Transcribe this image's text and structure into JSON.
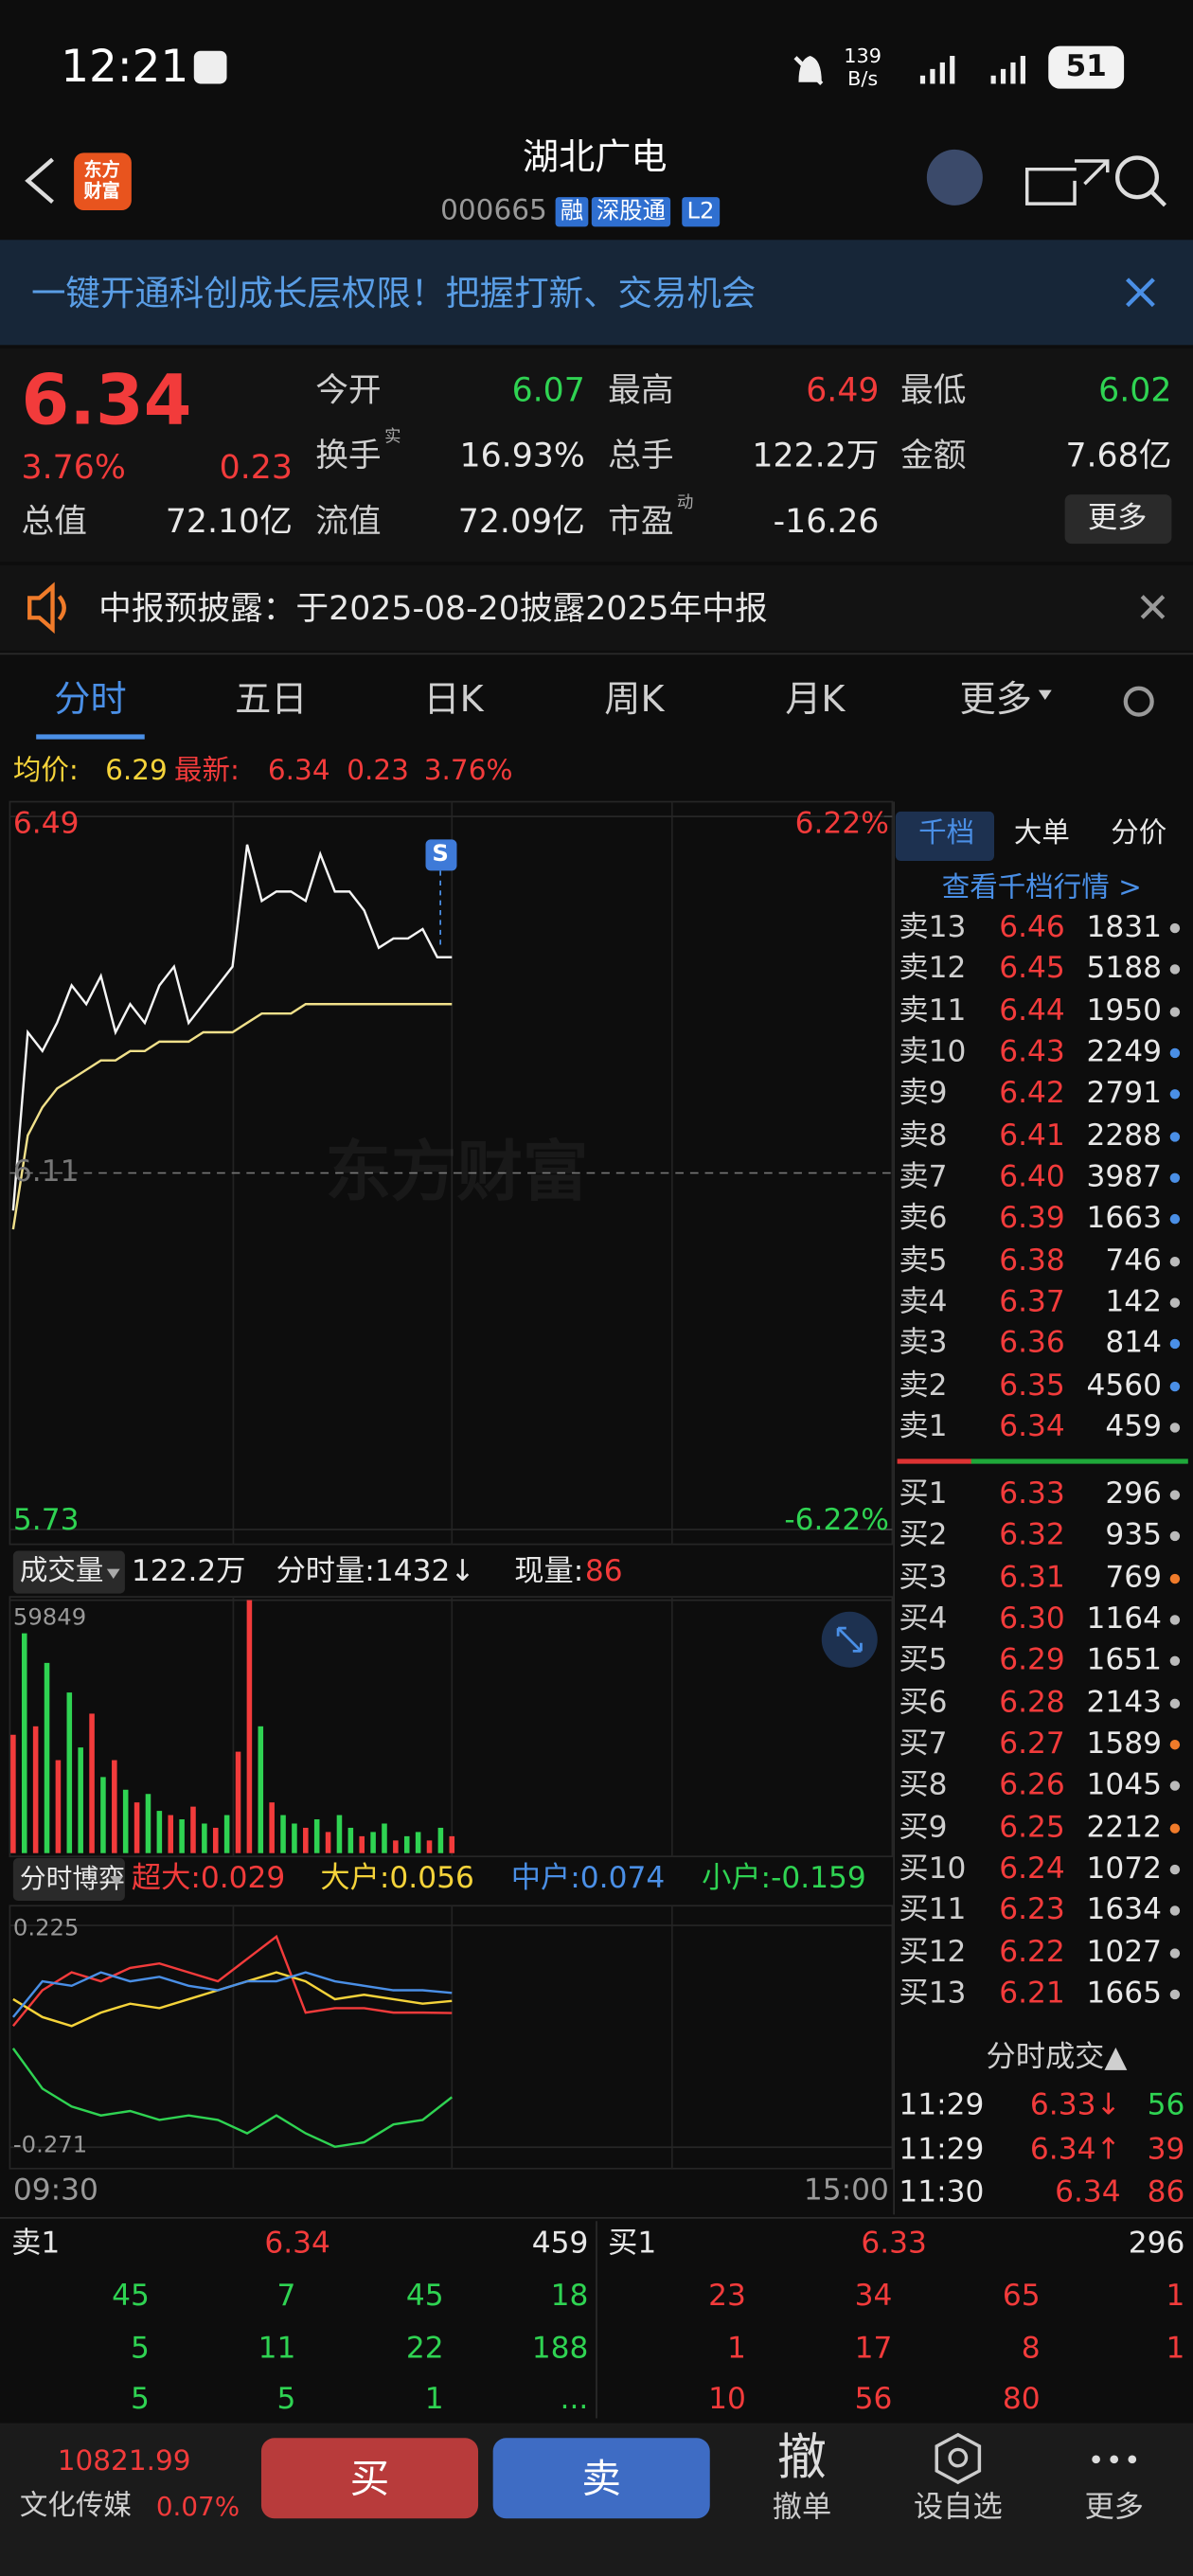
{
  "status_bar": {
    "time": "12:21",
    "speed": "139",
    "speed_unit": "B/s",
    "battery": "51"
  },
  "header": {
    "logo": "东方财富",
    "title": "湖北广电",
    "code": "000665",
    "tags": [
      "融",
      "深股通",
      "L2"
    ]
  },
  "banner": "一键开通科创成长层权限！把握打新、交易机会",
  "quote": {
    "price": "6.34",
    "change_pct": "3.76%",
    "change": "0.23",
    "fields": [
      {
        "label": "今开",
        "value": "6.07",
        "color": "#2fd352"
      },
      {
        "label": "最高",
        "value": "6.49",
        "color": "#f23b3b"
      },
      {
        "label": "最低",
        "value": "6.02",
        "color": "#2fd352"
      },
      {
        "label": "换手",
        "note": "实",
        "value": "16.93%",
        "color": "#e8e8e8"
      },
      {
        "label": "总手",
        "value": "122.2万",
        "color": "#e8e8e8"
      },
      {
        "label": "金额",
        "value": "7.68亿",
        "color": "#e8e8e8"
      },
      {
        "label": "总值",
        "value": "72.10亿",
        "color": "#e8e8e8"
      },
      {
        "label": "流值",
        "value": "72.09亿",
        "color": "#e8e8e8"
      },
      {
        "label": "市盈",
        "note": "动",
        "value": "-16.26",
        "color": "#e8e8e8"
      }
    ],
    "more": "更多"
  },
  "notice": "中报预披露：于2025-08-20披露2025年中报",
  "tabs": [
    "分时",
    "五日",
    "日K",
    "周K",
    "月K",
    "更多"
  ],
  "chart_info": {
    "avg_label": "均价:",
    "avg": "6.29",
    "latest_label": "最新:",
    "latest": "6.34",
    "change": "0.23",
    "pct": "3.76%"
  },
  "chart_data": [
    {
      "type": "line",
      "watermark": "东方财富",
      "marker": "S",
      "ylim": [
        5.73,
        6.49
      ],
      "yticks": [
        6.49,
        6.11,
        5.73
      ],
      "y2lim": [
        -6.22,
        6.22
      ],
      "y2ticks": [
        {
          "value": 6.22,
          "label": "6.22%"
        },
        {
          "value": -6.22,
          "label": "-6.22%"
        }
      ],
      "x_labels": [
        "09:30",
        "15:00"
      ],
      "series": [
        {
          "color": "#f5f5f5",
          "values": [
            6.07,
            6.26,
            6.24,
            6.27,
            6.31,
            6.29,
            6.32,
            6.26,
            6.29,
            6.27,
            6.31,
            6.33,
            6.27,
            6.29,
            6.31,
            6.33,
            6.46,
            6.4,
            6.41,
            6.41,
            6.4,
            6.45,
            6.41,
            6.41,
            6.39,
            6.35,
            6.36,
            6.36,
            6.37,
            6.34,
            6.34
          ]
        },
        {
          "color": "#f0e08a",
          "values": [
            6.05,
            6.15,
            6.18,
            6.2,
            6.21,
            6.22,
            6.23,
            6.23,
            6.24,
            6.24,
            6.25,
            6.25,
            6.25,
            6.26,
            6.26,
            6.26,
            6.27,
            6.28,
            6.28,
            6.28,
            6.29,
            6.29,
            6.29,
            6.29,
            6.29,
            6.29,
            6.29,
            6.29,
            6.29,
            6.29,
            6.29
          ]
        }
      ]
    },
    {
      "type": "bar",
      "title": "成交量",
      "total": "122.2万",
      "minute_volume": "分时量:1432↓",
      "current_label": "现量:",
      "current": "86",
      "ylim": [
        0,
        59849
      ],
      "yticks": [
        59849
      ],
      "values": [
        28000,
        52000,
        30000,
        45000,
        22000,
        38000,
        25000,
        33000,
        18000,
        22000,
        15000,
        12000,
        14000,
        10000,
        9000,
        8000,
        11000,
        7000,
        6000,
        9000,
        24000,
        59849,
        30000,
        12000,
        9000,
        7000,
        6000,
        8000,
        5000,
        9000,
        6000,
        4000,
        5000,
        7000,
        3000,
        4000,
        5000,
        3000,
        6000,
        4000
      ],
      "bar_colors": [
        "#f23b3b",
        "#2fd352",
        "#f23b3b",
        "#2fd352",
        "#f23b3b",
        "#2fd352",
        "#2fd352",
        "#f23b3b",
        "#2fd352",
        "#f23b3b",
        "#2fd352",
        "#f23b3b",
        "#2fd352",
        "#2fd352",
        "#f23b3b",
        "#2fd352",
        "#f23b3b",
        "#2fd352",
        "#f23b3b",
        "#2fd352",
        "#f23b3b",
        "#f23b3b",
        "#2fd352",
        "#f23b3b",
        "#2fd352",
        "#2fd352",
        "#f23b3b",
        "#2fd352",
        "#f23b3b",
        "#2fd352",
        "#2fd352",
        "#f23b3b",
        "#2fd352",
        "#2fd352",
        "#f23b3b",
        "#2fd352",
        "#2fd352",
        "#f23b3b",
        "#2fd352",
        "#f23b3b"
      ]
    },
    {
      "type": "line",
      "title": "分时博弈",
      "ylim": [
        -0.271,
        0.225
      ],
      "yticks": [
        0.225,
        -0.271
      ],
      "series": [
        {
          "legend": "超大:0.029",
          "color": "#f23b3b",
          "values": [
            0.0,
            0.08,
            0.12,
            0.1,
            0.13,
            0.14,
            0.12,
            0.1,
            0.15,
            0.2,
            0.03,
            0.04,
            0.04,
            0.03,
            0.03,
            0.029
          ]
        },
        {
          "legend": "大户:0.056",
          "color": "#f5d33a",
          "values": [
            0.06,
            0.02,
            0.0,
            0.03,
            0.05,
            0.04,
            0.06,
            0.08,
            0.1,
            0.12,
            0.1,
            0.06,
            0.07,
            0.06,
            0.05,
            0.056
          ]
        },
        {
          "legend": "中户:0.074",
          "color": "#4a8fe6",
          "values": [
            0.02,
            0.1,
            0.09,
            0.12,
            0.1,
            0.11,
            0.09,
            0.08,
            0.1,
            0.1,
            0.12,
            0.1,
            0.09,
            0.08,
            0.08,
            0.074
          ]
        },
        {
          "legend": "小户:-0.159",
          "color": "#2fd352",
          "values": [
            -0.05,
            -0.14,
            -0.18,
            -0.2,
            -0.19,
            -0.21,
            -0.2,
            -0.21,
            -0.24,
            -0.2,
            -0.24,
            -0.27,
            -0.26,
            -0.22,
            -0.21,
            -0.159
          ]
        }
      ]
    }
  ],
  "order_book": {
    "tabs": [
      "千档",
      "大单",
      "分价"
    ],
    "link": "查看千档行情 >",
    "asks": [
      {
        "label": "卖13",
        "price": "6.46",
        "volume": "1831",
        "dot": "#bbbbbb"
      },
      {
        "label": "卖12",
        "price": "6.45",
        "volume": "5188",
        "dot": "#bbbbbb"
      },
      {
        "label": "卖11",
        "price": "6.44",
        "volume": "1950",
        "dot": "#bbbbbb"
      },
      {
        "label": "卖10",
        "price": "6.43",
        "volume": "2249",
        "dot": "#4a8fe6"
      },
      {
        "label": "卖9",
        "price": "6.42",
        "volume": "2791",
        "dot": "#4a8fe6"
      },
      {
        "label": "卖8",
        "price": "6.41",
        "volume": "2288",
        "dot": "#4a8fe6"
      },
      {
        "label": "卖7",
        "price": "6.40",
        "volume": "3987",
        "dot": "#4a8fe6"
      },
      {
        "label": "卖6",
        "price": "6.39",
        "volume": "1663",
        "dot": "#4a8fe6"
      },
      {
        "label": "卖5",
        "price": "6.38",
        "volume": "746",
        "dot": "#bbbbbb"
      },
      {
        "label": "卖4",
        "price": "6.37",
        "volume": "142",
        "dot": "#bbbbbb"
      },
      {
        "label": "卖3",
        "price": "6.36",
        "volume": "814",
        "dot": "#4a8fe6"
      },
      {
        "label": "卖2",
        "price": "6.35",
        "volume": "4560",
        "dot": "#4a8fe6"
      },
      {
        "label": "卖1",
        "price": "6.34",
        "volume": "459",
        "dot": "#bbbbbb"
      }
    ],
    "bids": [
      {
        "label": "买1",
        "price": "6.33",
        "volume": "296",
        "dot": "#bbbbbb"
      },
      {
        "label": "买2",
        "price": "6.32",
        "volume": "935",
        "dot": "#bbbbbb"
      },
      {
        "label": "买3",
        "price": "6.31",
        "volume": "769",
        "dot": "#f07b2a"
      },
      {
        "label": "买4",
        "price": "6.30",
        "volume": "1164",
        "dot": "#bbbbbb"
      },
      {
        "label": "买5",
        "price": "6.29",
        "volume": "1651",
        "dot": "#bbbbbb"
      },
      {
        "label": "买6",
        "price": "6.28",
        "volume": "2143",
        "dot": "#bbbbbb"
      },
      {
        "label": "买7",
        "price": "6.27",
        "volume": "1589",
        "dot": "#f07b2a"
      },
      {
        "label": "买8",
        "price": "6.26",
        "volume": "1045",
        "dot": "#bbbbbb"
      },
      {
        "label": "买9",
        "price": "6.25",
        "volume": "2212",
        "dot": "#f07b2a"
      },
      {
        "label": "买10",
        "price": "6.24",
        "volume": "1072",
        "dot": "#bbbbbb"
      },
      {
        "label": "买11",
        "price": "6.23",
        "volume": "1634",
        "dot": "#bbbbbb"
      },
      {
        "label": "买12",
        "price": "6.22",
        "volume": "1027",
        "dot": "#bbbbbb"
      },
      {
        "label": "买13",
        "price": "6.21",
        "volume": "1665",
        "dot": "#bbbbbb"
      }
    ]
  },
  "trades": {
    "title": "分时成交▲",
    "rows": [
      {
        "time": "11:29",
        "price": "6.33↓",
        "volume": "56",
        "color": "#2fd352"
      },
      {
        "time": "11:29",
        "price": "6.34↑",
        "volume": "39",
        "color": "#f23b3b"
      },
      {
        "time": "11:30",
        "price": "6.34",
        "volume": "86",
        "color": "#f23b3b"
      }
    ]
  },
  "queue": {
    "sell": {
      "label": "卖1",
      "price": "6.34",
      "volume": "459",
      "rows": [
        [
          "45",
          "7",
          "45",
          "18"
        ],
        [
          "5",
          "11",
          "22",
          "188"
        ],
        [
          "5",
          "5",
          "1",
          "..."
        ]
      ]
    },
    "buy": {
      "label": "买1",
      "price": "6.33",
      "volume": "296",
      "rows": [
        [
          "23",
          "34",
          "65",
          "1"
        ],
        [
          "1",
          "17",
          "8",
          "1"
        ],
        [
          "10",
          "56",
          "80"
        ]
      ]
    }
  },
  "footer": {
    "index": "10821.99",
    "sector": "文化传媒",
    "sector_pct": "0.07%",
    "buy": "买",
    "sell": "卖",
    "cancel_icon": "撤",
    "cancel": "撤单",
    "watch": "设自选",
    "more": "更多"
  }
}
